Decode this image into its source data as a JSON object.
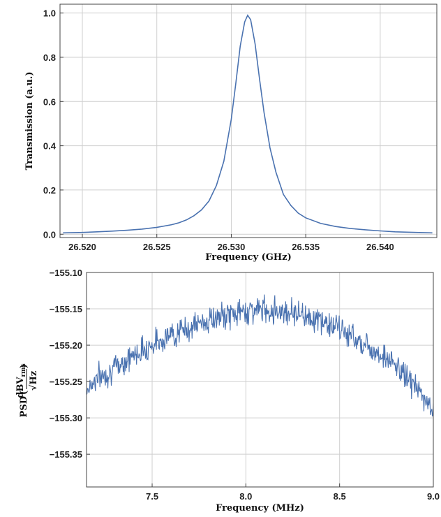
{
  "chart_data": [
    {
      "id": "transmission",
      "type": "line",
      "xlabel": "Frequency (GHz)",
      "ylabel": "Transmission (a.u.)",
      "xlim": [
        26.5185,
        26.5438
      ],
      "ylim": [
        -0.015,
        1.04
      ],
      "xticks": [
        26.52,
        26.525,
        26.53,
        26.535,
        26.54
      ],
      "xtick_labels": [
        "26.520",
        "26.525",
        "26.530",
        "26.535",
        "26.540"
      ],
      "yticks": [
        0.0,
        0.2,
        0.4,
        0.6,
        0.8,
        1.0
      ],
      "ytick_labels": [
        "0.0",
        "0.2",
        "0.4",
        "0.6",
        "0.8",
        "1.0"
      ],
      "grid": true,
      "color": "#4a72b0",
      "x": [
        26.5187,
        26.52,
        26.521,
        26.522,
        26.523,
        26.524,
        26.525,
        26.526,
        26.5265,
        26.527,
        26.5275,
        26.528,
        26.5285,
        26.529,
        26.5295,
        26.53,
        26.5303,
        26.5306,
        26.5309,
        26.5311,
        26.5313,
        26.5316,
        26.5319,
        26.5322,
        26.5326,
        26.533,
        26.5335,
        26.534,
        26.5345,
        26.535,
        26.536,
        26.537,
        26.538,
        26.539,
        26.54,
        26.541,
        26.542,
        26.5435
      ],
      "y": [
        0.006,
        0.008,
        0.011,
        0.014,
        0.018,
        0.023,
        0.031,
        0.043,
        0.052,
        0.065,
        0.084,
        0.11,
        0.15,
        0.22,
        0.33,
        0.52,
        0.68,
        0.85,
        0.96,
        0.99,
        0.97,
        0.86,
        0.7,
        0.55,
        0.39,
        0.28,
        0.18,
        0.13,
        0.095,
        0.074,
        0.049,
        0.035,
        0.026,
        0.02,
        0.015,
        0.011,
        0.009,
        0.006
      ]
    },
    {
      "id": "psd",
      "type": "line",
      "xlabel": "Frequency (MHz)",
      "ylabel": "PSD",
      "ylabel_unit_num": "dBV",
      "ylabel_unit_sub": "rms",
      "ylabel_unit_den": "Hz",
      "xlim": [
        7.15,
        9.0
      ],
      "ylim": [
        -155.395,
        -155.1
      ],
      "xticks": [
        7.5,
        8.0,
        8.5,
        9.0
      ],
      "xtick_labels": [
        "7.5",
        "8.0",
        "8.5",
        "9.0"
      ],
      "yticks": [
        -155.1,
        -155.15,
        -155.2,
        -155.25,
        -155.3,
        -155.35
      ],
      "ytick_labels": [
        "−155.10",
        "−155.15",
        "−155.20",
        "−155.25",
        "−155.30",
        "−155.35"
      ],
      "grid": true,
      "color": "#4a72b0",
      "x": [
        7.15,
        7.2,
        7.25,
        7.3,
        7.35,
        7.4,
        7.45,
        7.5,
        7.55,
        7.6,
        7.65,
        7.7,
        7.75,
        7.8,
        7.85,
        7.9,
        7.95,
        8.0,
        8.05,
        8.1,
        8.15,
        8.2,
        8.25,
        8.3,
        8.35,
        8.4,
        8.45,
        8.5,
        8.55,
        8.6,
        8.65,
        8.7,
        8.75,
        8.8,
        8.85,
        8.9,
        8.95,
        9.0
      ],
      "y": [
        -155.262,
        -155.246,
        -155.24,
        -155.232,
        -155.222,
        -155.214,
        -155.206,
        -155.199,
        -155.192,
        -155.186,
        -155.181,
        -155.176,
        -155.171,
        -155.166,
        -155.163,
        -155.159,
        -155.156,
        -155.153,
        -155.151,
        -155.151,
        -155.152,
        -155.153,
        -155.154,
        -155.157,
        -155.162,
        -155.167,
        -155.172,
        -155.178,
        -155.185,
        -155.193,
        -155.201,
        -155.209,
        -155.218,
        -155.229,
        -155.241,
        -155.255,
        -155.274,
        -155.29
      ]
    }
  ]
}
